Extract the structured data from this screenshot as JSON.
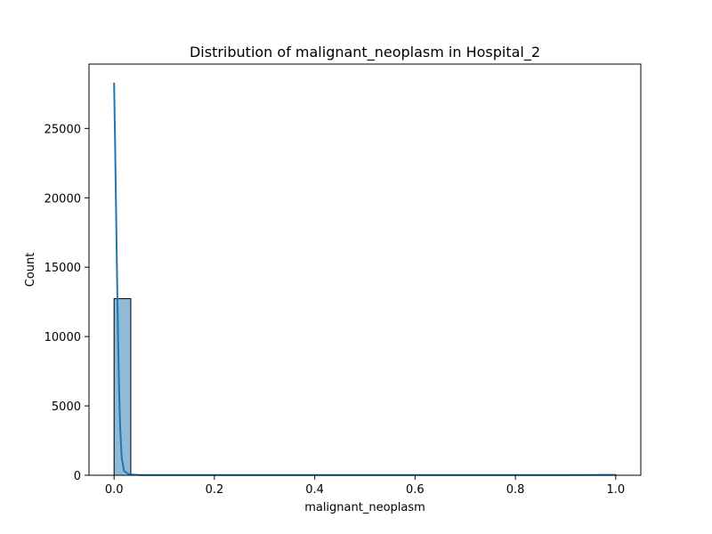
{
  "chart_data": {
    "type": "bar",
    "title": "Distribution of malignant_neoplasm in Hospital_2",
    "xlabel": "malignant_neoplasm",
    "ylabel": "Count",
    "xlim": [
      -0.05,
      1.05
    ],
    "ylim": [
      0,
      29640
    ],
    "x_ticks": [
      0.0,
      0.2,
      0.4,
      0.6,
      0.8,
      1.0
    ],
    "x_tick_labels": [
      "0.0",
      "0.2",
      "0.4",
      "0.6",
      "0.8",
      "1.0"
    ],
    "y_ticks": [
      0,
      5000,
      10000,
      15000,
      20000,
      25000
    ],
    "y_tick_labels": [
      "0",
      "5000",
      "10000",
      "15000",
      "20000",
      "25000"
    ],
    "grid": false,
    "bar_color": "#1f77b4",
    "kde_color": "#1f77b4",
    "histogram": {
      "bin_width": 0.0333,
      "bins": [
        {
          "x0": 0.0,
          "x1": 0.0333,
          "count": 12730
        },
        {
          "x0": 0.9667,
          "x1": 1.0,
          "count": 40
        }
      ]
    },
    "kde": {
      "x": [
        0.0,
        0.002,
        0.004,
        0.006,
        0.008,
        0.01,
        0.012,
        0.015,
        0.02,
        0.03,
        0.05,
        0.1,
        0.3,
        0.5,
        0.7,
        0.9,
        1.0
      ],
      "y": [
        28300,
        24000,
        19000,
        14200,
        9800,
        6200,
        3600,
        1300,
        300,
        60,
        20,
        15,
        15,
        15,
        15,
        15,
        25
      ]
    }
  }
}
